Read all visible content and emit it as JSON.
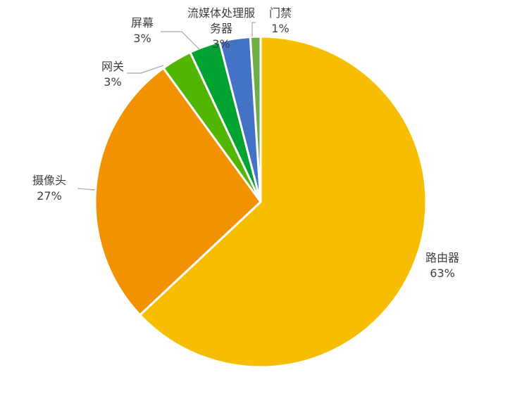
{
  "chart_data": {
    "type": "pie",
    "title": "",
    "start": "12 o'clock, clockwise",
    "slices": [
      {
        "label": "路由器",
        "value": 63,
        "pct_label": "63%",
        "color": "#F7BD00"
      },
      {
        "label": "摄像头",
        "value": 27,
        "pct_label": "27%",
        "color": "#F39200"
      },
      {
        "label": "网关",
        "value": 3,
        "pct_label": "3%",
        "color": "#52B500"
      },
      {
        "label": "屏幕",
        "value": 3,
        "pct_label": "3%",
        "color": "#00A232"
      },
      {
        "label": "流媒体处理服务器",
        "label_lines": [
          "流媒体处理服",
          "务器"
        ],
        "value": 3,
        "pct_label": "3%",
        "color": "#4472C4"
      },
      {
        "label": "门禁",
        "value": 1,
        "pct_label": "1%",
        "color": "#70AD47"
      }
    ]
  }
}
